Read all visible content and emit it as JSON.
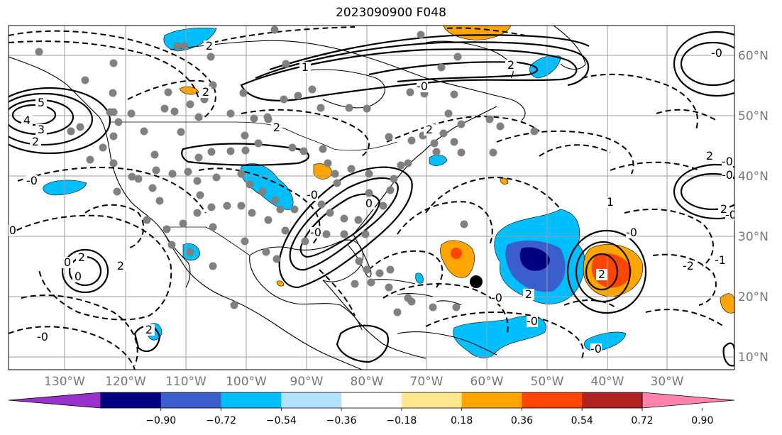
{
  "title": "2023090900 F048",
  "colors": {
    "gridline": "#9e9e9e",
    "coastline": "#000000",
    "axis_label": "#777777",
    "station_dot": "#808080"
  },
  "lon_ticks": [
    "130°W",
    "120°W",
    "110°W",
    "100°W",
    "90°W",
    "80°W",
    "70°W",
    "60°W",
    "50°W",
    "40°W",
    "30°W"
  ],
  "lat_ticks": [
    "60°N",
    "50°N",
    "40°N",
    "30°N",
    "20°N",
    "10°N"
  ],
  "colorbar": {
    "labels": [
      "−0.90",
      "−0.72",
      "−0.54",
      "−0.36",
      "−0.18",
      "0.18",
      "0.36",
      "0.54",
      "0.72",
      "0.90"
    ],
    "colors": [
      "#9932cc",
      "#000080",
      "#3a5fcd",
      "#00bfff",
      "#b0e2ff",
      "#ffffff",
      "#ffe88c",
      "#ffa500",
      "#ff4500",
      "#b22222",
      "#ff82ab"
    ],
    "extend": "both"
  },
  "contour_labels": [
    "2",
    "2",
    "-0",
    "-0",
    "0",
    "2",
    "5",
    "4",
    "3",
    "2",
    "-0",
    "2",
    "0",
    "2",
    "2",
    "-0",
    "-0",
    "1",
    "2",
    "-0",
    "2",
    "-0",
    "-0",
    "2",
    "-0",
    "-0",
    "2",
    "-2",
    "-0",
    "-1",
    "-0",
    "-0",
    "2",
    "0",
    "2",
    "1",
    "-0"
  ]
}
